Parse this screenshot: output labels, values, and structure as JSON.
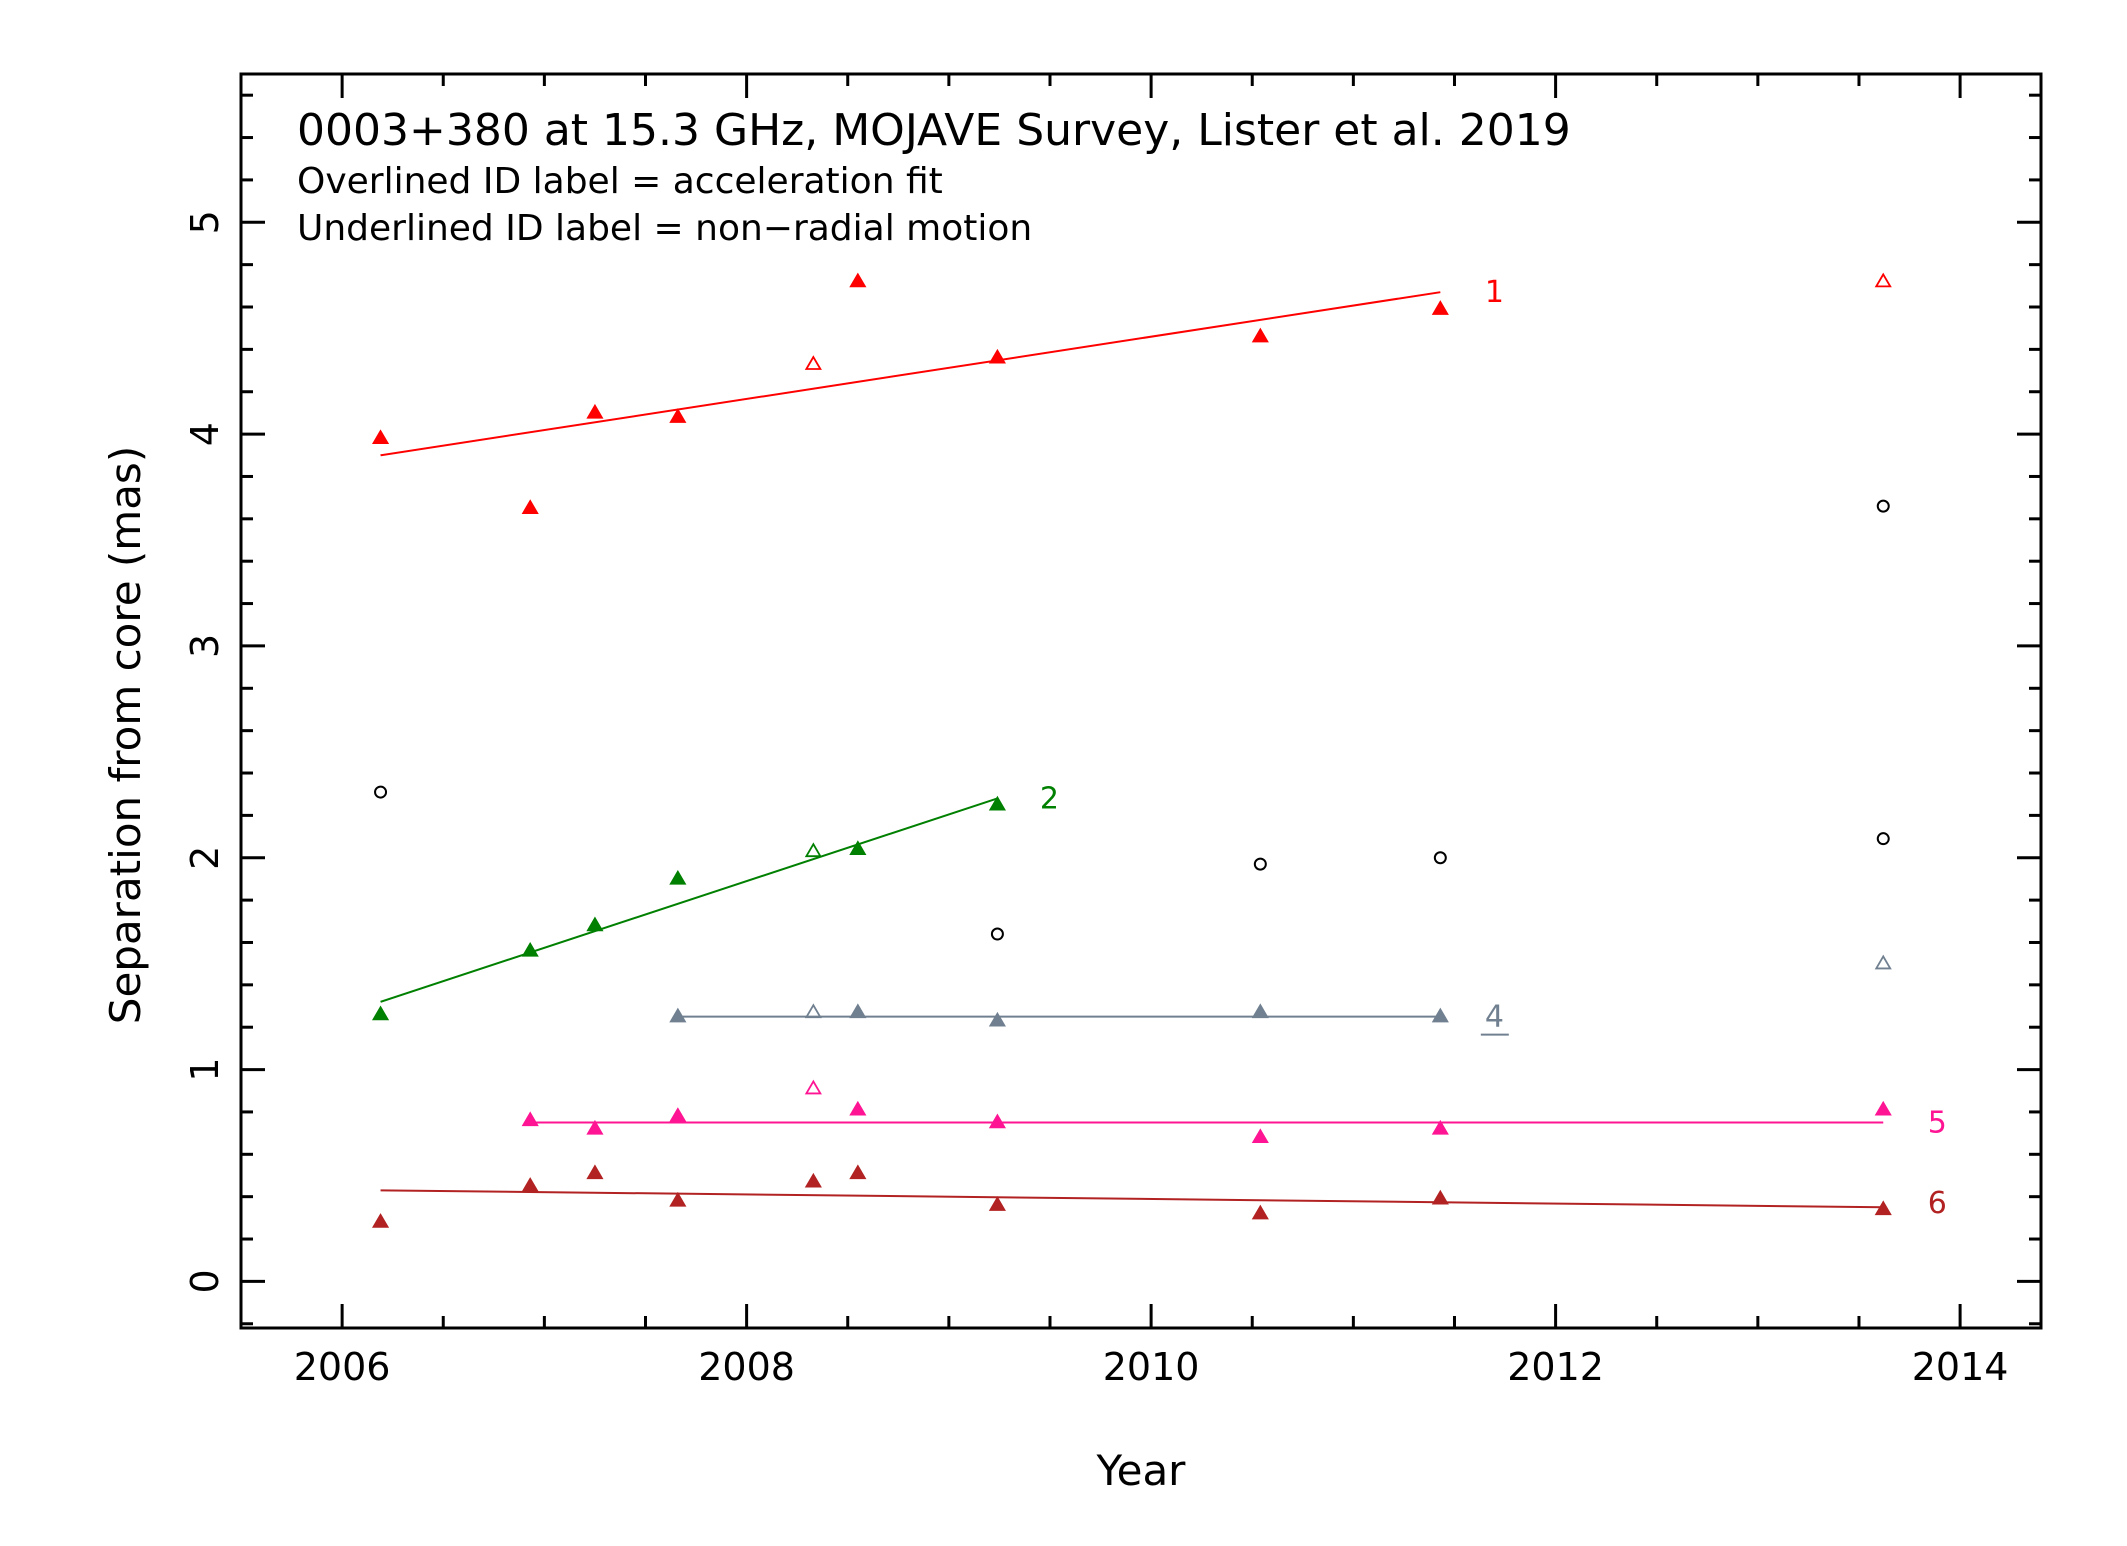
{
  "chart_data": {
    "type": "scatter",
    "title": "0003+380 at 15.3 GHz, MOJAVE Survey, Lister et al. 2019",
    "subtitle_lines": [
      "Overlined ID label = acceleration fit",
      "Underlined ID label = non−radial motion"
    ],
    "xlabel": "Year",
    "ylabel": "Separation from core (mas)",
    "xlim": [
      2005.5,
      2014.4
    ],
    "ylim": [
      -0.22,
      5.7
    ],
    "xticks": [
      2006,
      2008,
      2010,
      2012,
      2014
    ],
    "yticks": [
      0,
      1,
      2,
      3,
      4,
      5
    ],
    "legend": "none",
    "grid": false,
    "series": [
      {
        "name": "1",
        "color": "#ff0000",
        "marker": "triangle",
        "points": [
          {
            "x": 2006.19,
            "y": 3.98,
            "filled": true
          },
          {
            "x": 2006.93,
            "y": 3.65,
            "filled": true
          },
          {
            "x": 2007.25,
            "y": 4.1,
            "filled": true
          },
          {
            "x": 2007.66,
            "y": 4.08,
            "filled": true
          },
          {
            "x": 2008.33,
            "y": 4.33,
            "filled": false
          },
          {
            "x": 2008.55,
            "y": 4.72,
            "filled": true
          },
          {
            "x": 2009.24,
            "y": 4.36,
            "filled": true
          },
          {
            "x": 2010.54,
            "y": 4.46,
            "filled": true
          },
          {
            "x": 2011.43,
            "y": 4.59,
            "filled": true
          },
          {
            "x": 2013.62,
            "y": 4.72,
            "filled": false
          }
        ],
        "fit": {
          "x": [
            2006.19,
            2011.43
          ],
          "y": [
            3.9,
            4.67
          ]
        },
        "label_pos": {
          "x": 2011.65,
          "y": 4.67
        },
        "underline": false
      },
      {
        "name": "2",
        "color": "#008000",
        "marker": "triangle",
        "points": [
          {
            "x": 2006.19,
            "y": 1.26,
            "filled": true
          },
          {
            "x": 2006.93,
            "y": 1.56,
            "filled": true
          },
          {
            "x": 2007.25,
            "y": 1.68,
            "filled": true
          },
          {
            "x": 2007.66,
            "y": 1.9,
            "filled": true
          },
          {
            "x": 2008.33,
            "y": 2.03,
            "filled": false
          },
          {
            "x": 2008.55,
            "y": 2.04,
            "filled": true
          },
          {
            "x": 2009.24,
            "y": 2.25,
            "filled": true
          }
        ],
        "fit": {
          "x": [
            2006.19,
            2009.24
          ],
          "y": [
            1.32,
            2.28
          ]
        },
        "label_pos": {
          "x": 2009.45,
          "y": 2.28
        },
        "underline": false
      },
      {
        "name": "4",
        "color": "#708090",
        "marker": "triangle",
        "points": [
          {
            "x": 2007.66,
            "y": 1.25,
            "filled": true
          },
          {
            "x": 2008.33,
            "y": 1.27,
            "filled": false
          },
          {
            "x": 2008.55,
            "y": 1.27,
            "filled": true
          },
          {
            "x": 2009.24,
            "y": 1.23,
            "filled": true
          },
          {
            "x": 2010.54,
            "y": 1.27,
            "filled": true
          },
          {
            "x": 2011.43,
            "y": 1.25,
            "filled": true
          },
          {
            "x": 2013.62,
            "y": 1.5,
            "filled": false
          }
        ],
        "fit": {
          "x": [
            2007.66,
            2011.43
          ],
          "y": [
            1.25,
            1.25
          ]
        },
        "label_pos": {
          "x": 2011.65,
          "y": 1.25
        },
        "underline": true
      },
      {
        "name": "5",
        "color": "#ff1493",
        "marker": "triangle",
        "points": [
          {
            "x": 2006.93,
            "y": 0.76,
            "filled": true
          },
          {
            "x": 2007.25,
            "y": 0.72,
            "filled": true
          },
          {
            "x": 2007.66,
            "y": 0.78,
            "filled": true
          },
          {
            "x": 2008.33,
            "y": 0.91,
            "filled": false
          },
          {
            "x": 2008.55,
            "y": 0.81,
            "filled": true
          },
          {
            "x": 2009.24,
            "y": 0.75,
            "filled": true
          },
          {
            "x": 2010.54,
            "y": 0.68,
            "filled": true
          },
          {
            "x": 2011.43,
            "y": 0.72,
            "filled": true
          },
          {
            "x": 2013.62,
            "y": 0.81,
            "filled": true
          }
        ],
        "fit": {
          "x": [
            2006.93,
            2013.62
          ],
          "y": [
            0.75,
            0.75
          ]
        },
        "label_pos": {
          "x": 2013.84,
          "y": 0.75
        },
        "underline": false
      },
      {
        "name": "6",
        "color": "#b22222",
        "marker": "triangle",
        "points": [
          {
            "x": 2006.19,
            "y": 0.28,
            "filled": true
          },
          {
            "x": 2006.93,
            "y": 0.45,
            "filled": true
          },
          {
            "x": 2007.25,
            "y": 0.51,
            "filled": true
          },
          {
            "x": 2007.66,
            "y": 0.38,
            "filled": true
          },
          {
            "x": 2008.33,
            "y": 0.47,
            "filled": true
          },
          {
            "x": 2008.55,
            "y": 0.51,
            "filled": true
          },
          {
            "x": 2009.24,
            "y": 0.36,
            "filled": true
          },
          {
            "x": 2010.54,
            "y": 0.32,
            "filled": true
          },
          {
            "x": 2011.43,
            "y": 0.39,
            "filled": true
          },
          {
            "x": 2013.62,
            "y": 0.34,
            "filled": true
          }
        ],
        "fit": {
          "x": [
            2006.19,
            2013.62
          ],
          "y": [
            0.43,
            0.35
          ]
        },
        "label_pos": {
          "x": 2013.84,
          "y": 0.37
        },
        "underline": false
      },
      {
        "name": "",
        "color": "#000000",
        "marker": "circle",
        "points": [
          {
            "x": 2006.19,
            "y": 2.31,
            "filled": false
          },
          {
            "x": 2009.24,
            "y": 1.64,
            "filled": false
          },
          {
            "x": 2010.54,
            "y": 1.97,
            "filled": false
          },
          {
            "x": 2011.43,
            "y": 2.0,
            "filled": false
          },
          {
            "x": 2013.62,
            "y": 2.09,
            "filled": false
          },
          {
            "x": 2013.62,
            "y": 3.66,
            "filled": false
          }
        ]
      }
    ]
  }
}
